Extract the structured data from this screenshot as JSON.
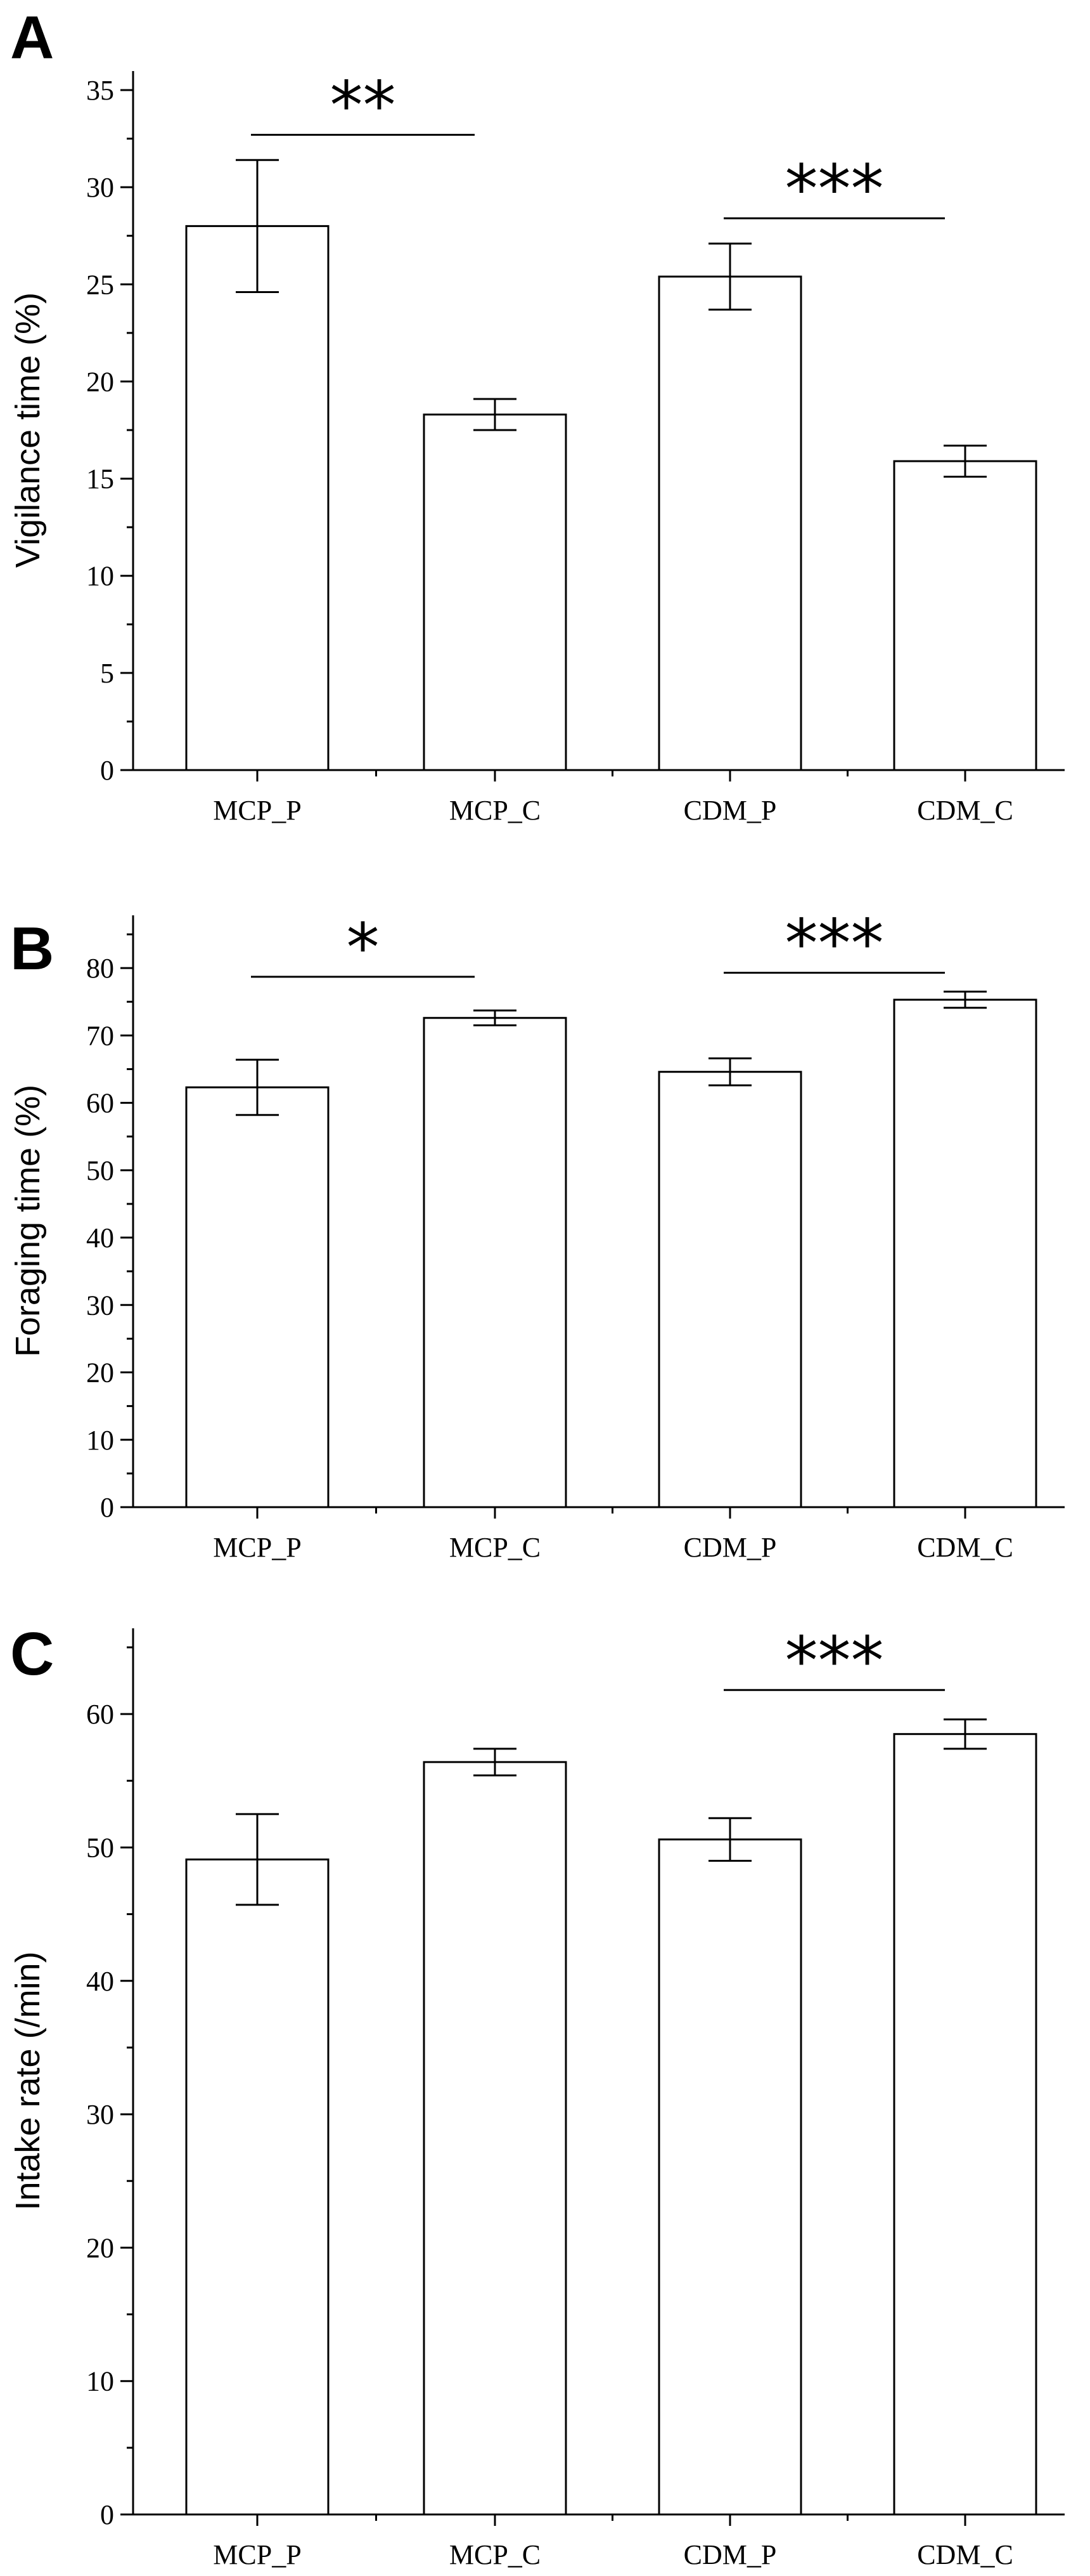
{
  "chart_data": [
    {
      "type": "bar",
      "panel": "A",
      "ylabel": "Vigilance time (%)",
      "ylim": [
        0,
        35
      ],
      "yticks": [
        0,
        5,
        10,
        15,
        20,
        25,
        30,
        35
      ],
      "categories": [
        "MCP_P",
        "MCP_C",
        "CDM_P",
        "CDM_C"
      ],
      "values": [
        28.0,
        18.3,
        25.4,
        15.9
      ],
      "errors": [
        3.4,
        0.8,
        1.7,
        0.8
      ],
      "significance": [
        {
          "from": 0,
          "to": 1,
          "label": "**",
          "y": 32.7
        },
        {
          "from": 2,
          "to": 3,
          "label": "***",
          "y": 28.4
        }
      ]
    },
    {
      "type": "bar",
      "panel": "B",
      "ylabel": "Foraging time (%)",
      "ylim": [
        0,
        85
      ],
      "yticks": [
        0,
        10,
        20,
        30,
        40,
        50,
        60,
        70,
        80
      ],
      "categories": [
        "MCP_P",
        "MCP_C",
        "CDM_P",
        "CDM_C"
      ],
      "values": [
        62.3,
        72.6,
        64.6,
        75.3
      ],
      "errors": [
        4.1,
        1.1,
        2.0,
        1.2
      ],
      "significance": [
        {
          "from": 0,
          "to": 1,
          "label": "*",
          "y": 78.7
        },
        {
          "from": 2,
          "to": 3,
          "label": "***",
          "y": 79.3
        }
      ]
    },
    {
      "type": "bar",
      "panel": "C",
      "ylabel": "Intake rate (/min)",
      "ylim": [
        0,
        65
      ],
      "yticks": [
        0,
        10,
        20,
        30,
        40,
        50,
        60
      ],
      "categories": [
        "MCP_P",
        "MCP_C",
        "CDM_P",
        "CDM_C"
      ],
      "values": [
        49.1,
        56.4,
        50.6,
        58.5
      ],
      "errors": [
        3.4,
        1.0,
        1.6,
        1.1
      ],
      "significance": [
        {
          "from": 2,
          "to": 3,
          "label": "***",
          "y": 61.8
        }
      ]
    }
  ]
}
